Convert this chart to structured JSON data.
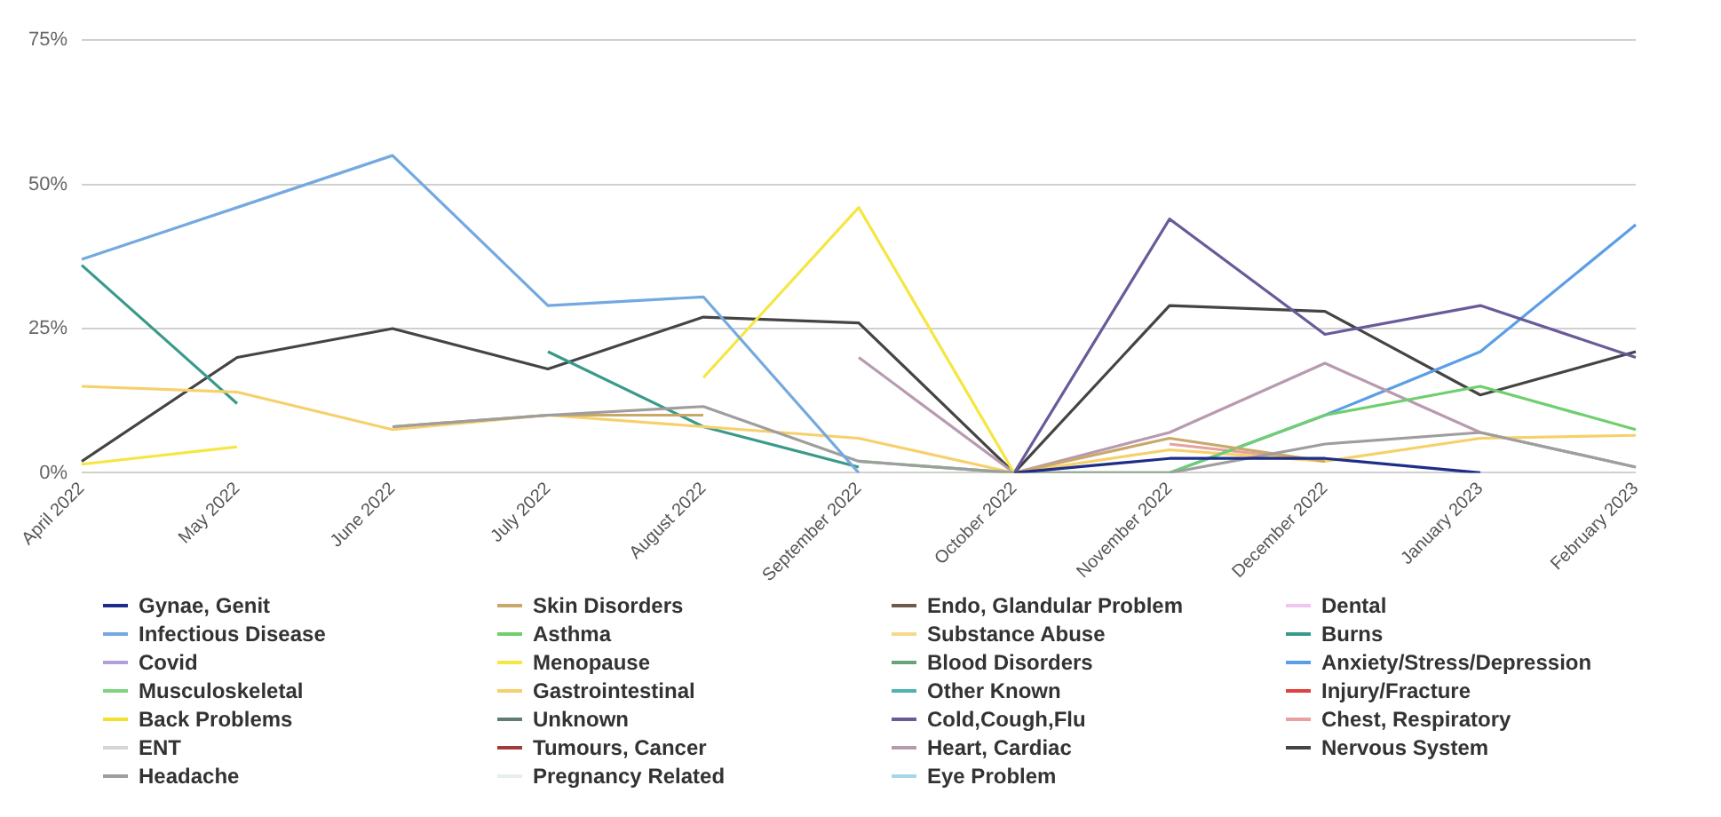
{
  "chart_data": {
    "type": "line",
    "categories": [
      "April 2022",
      "May 2022",
      "June 2022",
      "July 2022",
      "August 2022",
      "September 2022",
      "October 2022",
      "November 2022",
      "December 2022",
      "January 2023",
      "February 2023"
    ],
    "ylim": [
      0,
      75
    ],
    "yticks": [
      {
        "value": 0,
        "label": "0%"
      },
      {
        "value": 25,
        "label": "25%"
      },
      {
        "value": 50,
        "label": "50%"
      },
      {
        "value": 75,
        "label": "75%"
      }
    ],
    "grid": "y",
    "legend": "bottom",
    "marker": "none",
    "series": [
      {
        "name": "Gynae, Genit",
        "color": "#1f2d8a",
        "values": [
          null,
          null,
          null,
          null,
          null,
          null,
          0,
          2.5,
          2.5,
          0,
          null
        ]
      },
      {
        "name": "Infectious Disease",
        "color": "#74a9e0",
        "values": [
          37,
          46,
          55,
          29,
          30.5,
          0,
          null,
          null,
          null,
          null,
          null
        ]
      },
      {
        "name": "Covid",
        "color": "#b39ddb",
        "values": [
          null,
          null,
          null,
          null,
          null,
          null,
          null,
          null,
          null,
          null,
          null
        ]
      },
      {
        "name": "Musculoskeletal",
        "color": "#7ed37e",
        "values": [
          null,
          null,
          null,
          null,
          null,
          null,
          null,
          null,
          null,
          null,
          null
        ]
      },
      {
        "name": "Back Problems",
        "color": "#f2e22c",
        "values": [
          null,
          null,
          null,
          null,
          null,
          null,
          null,
          null,
          null,
          null,
          null
        ]
      },
      {
        "name": "ENT",
        "color": "#d5d5d5",
        "values": [
          null,
          null,
          null,
          null,
          null,
          null,
          null,
          null,
          null,
          null,
          null
        ]
      },
      {
        "name": "Headache",
        "color": "#9e9e9e",
        "values": [
          null,
          null,
          8,
          10,
          11.5,
          2,
          0,
          0,
          5,
          7,
          1
        ]
      },
      {
        "name": "Skin Disorders",
        "color": "#c9a86a",
        "values": [
          null,
          null,
          8,
          10,
          10,
          null,
          0,
          6,
          2,
          null,
          null
        ]
      },
      {
        "name": "Asthma",
        "color": "#6fcf6f",
        "values": [
          null,
          null,
          null,
          null,
          null,
          2,
          0,
          0,
          10,
          15,
          7.5
        ]
      },
      {
        "name": "Menopause",
        "color": "#f5e642",
        "values": [
          1.5,
          4.5,
          null,
          null,
          16.5,
          46,
          0,
          null,
          null,
          null,
          null
        ]
      },
      {
        "name": "Gastrointestinal",
        "color": "#f6d06a",
        "values": [
          15,
          14,
          7.5,
          10,
          8,
          6,
          0,
          4,
          2,
          6,
          6.5
        ]
      },
      {
        "name": "Unknown",
        "color": "#607d70",
        "values": [
          null,
          null,
          null,
          null,
          null,
          null,
          null,
          null,
          null,
          null,
          null
        ]
      },
      {
        "name": "Tumours, Cancer",
        "color": "#a33a3a",
        "values": [
          null,
          null,
          null,
          null,
          null,
          null,
          null,
          null,
          null,
          null,
          null
        ]
      },
      {
        "name": "Pregnancy Related",
        "color": "#e8eef0",
        "values": [
          null,
          null,
          null,
          null,
          null,
          null,
          null,
          null,
          null,
          null,
          null
        ]
      },
      {
        "name": "Endo, Glandular Problem",
        "color": "#6d5a4a",
        "values": [
          null,
          null,
          null,
          null,
          null,
          null,
          null,
          null,
          null,
          null,
          null
        ]
      },
      {
        "name": "Substance Abuse",
        "color": "#f5d98a",
        "values": [
          null,
          null,
          null,
          null,
          null,
          null,
          null,
          null,
          null,
          null,
          null
        ]
      },
      {
        "name": "Blood Disorders",
        "color": "#6aa37a",
        "values": [
          null,
          null,
          null,
          null,
          null,
          null,
          null,
          null,
          null,
          null,
          null
        ]
      },
      {
        "name": "Other Known",
        "color": "#4fb3b3",
        "values": [
          null,
          null,
          null,
          null,
          null,
          null,
          null,
          null,
          null,
          null,
          null
        ]
      },
      {
        "name": "Cold,Cough,Flu",
        "color": "#6a5a9a",
        "values": [
          null,
          null,
          null,
          null,
          null,
          null,
          0,
          44,
          24,
          29,
          20
        ]
      },
      {
        "name": "Heart, Cardiac",
        "color": "#b89ab0",
        "values": [
          null,
          null,
          null,
          null,
          null,
          20,
          0,
          7,
          19,
          7,
          1
        ]
      },
      {
        "name": "Eye Problem",
        "color": "#a6d6e8",
        "values": [
          null,
          null,
          null,
          null,
          null,
          null,
          null,
          null,
          null,
          null,
          null
        ]
      },
      {
        "name": "Dental",
        "color": "#f0c6f0",
        "values": [
          null,
          null,
          null,
          null,
          null,
          null,
          null,
          null,
          null,
          null,
          null
        ]
      },
      {
        "name": "Burns",
        "color": "#3a9a8a",
        "values": [
          36,
          12,
          null,
          21,
          8,
          1,
          null,
          null,
          null,
          null,
          null
        ]
      },
      {
        "name": "Anxiety/Stress/Depression",
        "color": "#5a9ee8",
        "values": [
          null,
          null,
          null,
          null,
          null,
          null,
          null,
          0,
          10,
          21,
          43
        ]
      },
      {
        "name": "Injury/Fracture",
        "color": "#e04040",
        "values": [
          null,
          null,
          null,
          null,
          null,
          null,
          null,
          null,
          null,
          null,
          null
        ]
      },
      {
        "name": "Chest, Respiratory",
        "color": "#e8a0a0",
        "values": [
          null,
          null,
          null,
          null,
          null,
          null,
          null,
          5,
          2,
          null,
          null
        ]
      },
      {
        "name": "Nervous System",
        "color": "#444444",
        "values": [
          2,
          20,
          25,
          18,
          27,
          26,
          0,
          29,
          28,
          13.5,
          21
        ]
      }
    ]
  }
}
